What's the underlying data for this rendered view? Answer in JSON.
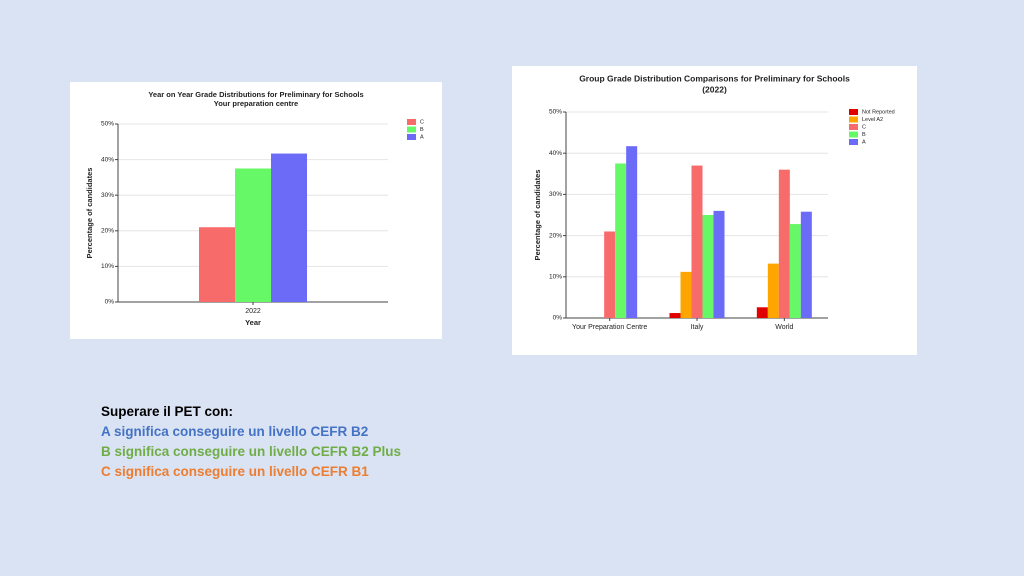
{
  "chart_data": [
    {
      "type": "bar",
      "title": "Year on Year Grade Distributions for Preliminary for Schools",
      "subtitle": "Your preparation centre",
      "x_label": "Year",
      "y_label": "Percentage of candidates",
      "categories": [
        "2022"
      ],
      "series": [
        {
          "name": "C",
          "color": "#f86b6b",
          "values": [
            21
          ]
        },
        {
          "name": "B",
          "color": "#66f866",
          "values": [
            37.5
          ]
        },
        {
          "name": "A",
          "color": "#6b6bf8",
          "values": [
            41.7
          ]
        }
      ],
      "ylim": [
        0,
        50
      ],
      "yticks": [
        {
          "value": 0,
          "label": "0%"
        },
        {
          "value": 10,
          "label": "10%"
        },
        {
          "value": 20,
          "label": "20%"
        },
        {
          "value": 30,
          "label": "30%"
        },
        {
          "value": 40,
          "label": "40%"
        },
        {
          "value": 50,
          "label": "50%"
        }
      ],
      "grid": true,
      "legend": "top-right"
    },
    {
      "type": "bar",
      "title": "Group Grade Distribution Comparisons for Preliminary for Schools",
      "subtitle": "(2022)",
      "y_label": "Percentage of candidates",
      "categories": [
        "Your Preparation Centre",
        "Italy",
        "World"
      ],
      "series": [
        {
          "name": "Not Reported",
          "color": "#e00000",
          "values": [
            0,
            1.2,
            2.6
          ]
        },
        {
          "name": "Level A2",
          "color": "#ffa500",
          "values": [
            0,
            11.2,
            13.2
          ]
        },
        {
          "name": "C",
          "color": "#f86b6b",
          "values": [
            21,
            37,
            36
          ]
        },
        {
          "name": "B",
          "color": "#66f866",
          "values": [
            37.5,
            25,
            22.8
          ]
        },
        {
          "name": "A",
          "color": "#6b6bf8",
          "values": [
            41.7,
            26,
            25.8
          ]
        }
      ],
      "ylim": [
        0,
        50
      ],
      "yticks": [
        {
          "value": 0,
          "label": "0%"
        },
        {
          "value": 10,
          "label": "10%"
        },
        {
          "value": 20,
          "label": "20%"
        },
        {
          "value": 30,
          "label": "30%"
        },
        {
          "value": 40,
          "label": "40%"
        },
        {
          "value": 50,
          "label": "50%"
        }
      ],
      "grid": true,
      "legend": "top-right"
    }
  ],
  "notes": {
    "heading": "Superare il PET con:",
    "lines": [
      {
        "text": "A significa  conseguire un livello  CEFR B2",
        "color": "#4472c4"
      },
      {
        "text": "B significa  conseguire un livello  CEFR B2 Plus",
        "color": "#70ad47"
      },
      {
        "text": "C significa  conseguire un livello  CEFR B1",
        "color": "#ed7d31"
      }
    ]
  }
}
